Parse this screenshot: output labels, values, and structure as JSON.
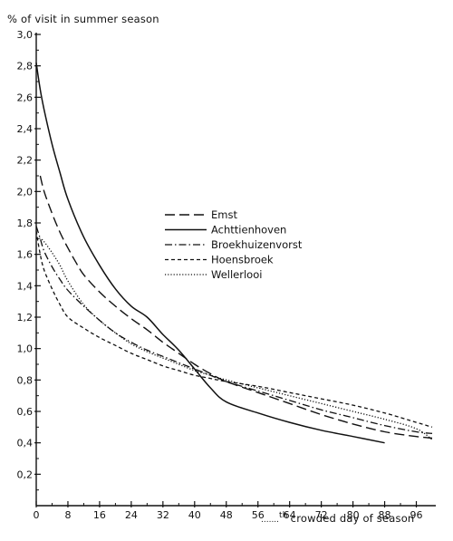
{
  "chart_data": {
    "type": "line",
    "ylabel": "% of visit in summer season",
    "xlabel_prefix": "th",
    "xlabel": "crowded day of season",
    "xlim": [
      0,
      100
    ],
    "ylim": [
      0,
      3.0
    ],
    "x_ticks": [
      "0",
      "8",
      "16",
      "24",
      "32",
      "40",
      "48",
      "56",
      "64",
      "72",
      "80",
      "88",
      "96"
    ],
    "y_ticks": [
      "0,2",
      "0,4",
      "0,6",
      "0,8",
      "1,0",
      "1,2",
      "1,4",
      "1,6",
      "1,8",
      "2,0",
      "2,2",
      "2,4",
      "2,6",
      "2,8",
      "3,0"
    ],
    "grid": false,
    "legend_position": "center",
    "series": [
      {
        "name": "Emst",
        "style": "long-dash",
        "points": [
          [
            1,
            2.1
          ],
          [
            2,
            2.0
          ],
          [
            4,
            1.86
          ],
          [
            6,
            1.74
          ],
          [
            8,
            1.64
          ],
          [
            10,
            1.55
          ],
          [
            12,
            1.47
          ],
          [
            16,
            1.36
          ],
          [
            20,
            1.27
          ],
          [
            24,
            1.19
          ],
          [
            28,
            1.12
          ],
          [
            32,
            1.04
          ],
          [
            36,
            0.97
          ],
          [
            40,
            0.9
          ],
          [
            44,
            0.84
          ],
          [
            48,
            0.79
          ],
          [
            56,
            0.72
          ],
          [
            64,
            0.65
          ],
          [
            72,
            0.58
          ],
          [
            80,
            0.52
          ],
          [
            88,
            0.47
          ],
          [
            96,
            0.44
          ],
          [
            100,
            0.43
          ]
        ]
      },
      {
        "name": "Achttienhoven",
        "style": "solid",
        "points": [
          [
            0,
            2.82
          ],
          [
            1,
            2.65
          ],
          [
            2,
            2.52
          ],
          [
            4,
            2.3
          ],
          [
            6,
            2.12
          ],
          [
            8,
            1.95
          ],
          [
            12,
            1.71
          ],
          [
            16,
            1.53
          ],
          [
            20,
            1.38
          ],
          [
            24,
            1.27
          ],
          [
            28,
            1.2
          ],
          [
            32,
            1.09
          ],
          [
            36,
            0.99
          ],
          [
            40,
            0.87
          ],
          [
            44,
            0.75
          ],
          [
            48,
            0.66
          ],
          [
            56,
            0.59
          ],
          [
            64,
            0.53
          ],
          [
            72,
            0.48
          ],
          [
            80,
            0.44
          ],
          [
            88,
            0.4
          ]
        ]
      },
      {
        "name": "Broekhuizenvorst",
        "style": "dash-dot",
        "points": [
          [
            0,
            1.78
          ],
          [
            1,
            1.7
          ],
          [
            2,
            1.62
          ],
          [
            4,
            1.52
          ],
          [
            6,
            1.44
          ],
          [
            8,
            1.37
          ],
          [
            12,
            1.27
          ],
          [
            16,
            1.18
          ],
          [
            20,
            1.1
          ],
          [
            24,
            1.04
          ],
          [
            28,
            0.99
          ],
          [
            32,
            0.95
          ],
          [
            36,
            0.91
          ],
          [
            40,
            0.87
          ],
          [
            44,
            0.83
          ],
          [
            48,
            0.79
          ],
          [
            56,
            0.73
          ],
          [
            64,
            0.67
          ],
          [
            72,
            0.61
          ],
          [
            80,
            0.56
          ],
          [
            88,
            0.51
          ],
          [
            96,
            0.47
          ],
          [
            100,
            0.46
          ]
        ]
      },
      {
        "name": "Hoensbroek",
        "style": "short-dash",
        "points": [
          [
            0,
            1.75
          ],
          [
            1,
            1.6
          ],
          [
            2,
            1.5
          ],
          [
            4,
            1.38
          ],
          [
            6,
            1.28
          ],
          [
            8,
            1.2
          ],
          [
            12,
            1.13
          ],
          [
            16,
            1.07
          ],
          [
            20,
            1.02
          ],
          [
            24,
            0.97
          ],
          [
            28,
            0.93
          ],
          [
            32,
            0.89
          ],
          [
            36,
            0.86
          ],
          [
            40,
            0.83
          ],
          [
            44,
            0.81
          ],
          [
            48,
            0.79
          ],
          [
            56,
            0.76
          ],
          [
            64,
            0.72
          ],
          [
            72,
            0.68
          ],
          [
            80,
            0.64
          ],
          [
            88,
            0.59
          ],
          [
            96,
            0.53
          ],
          [
            100,
            0.5
          ]
        ]
      },
      {
        "name": "Wellerlooi",
        "style": "dotted",
        "points": [
          [
            0,
            1.7
          ],
          [
            1,
            1.7
          ],
          [
            2,
            1.68
          ],
          [
            4,
            1.61
          ],
          [
            6,
            1.53
          ],
          [
            8,
            1.43
          ],
          [
            12,
            1.28
          ],
          [
            16,
            1.18
          ],
          [
            20,
            1.1
          ],
          [
            24,
            1.03
          ],
          [
            28,
            0.98
          ],
          [
            32,
            0.94
          ],
          [
            36,
            0.9
          ],
          [
            40,
            0.86
          ],
          [
            44,
            0.83
          ],
          [
            48,
            0.8
          ],
          [
            56,
            0.75
          ],
          [
            64,
            0.7
          ],
          [
            72,
            0.65
          ],
          [
            80,
            0.6
          ],
          [
            88,
            0.55
          ],
          [
            96,
            0.49
          ],
          [
            100,
            0.42
          ]
        ]
      }
    ]
  }
}
